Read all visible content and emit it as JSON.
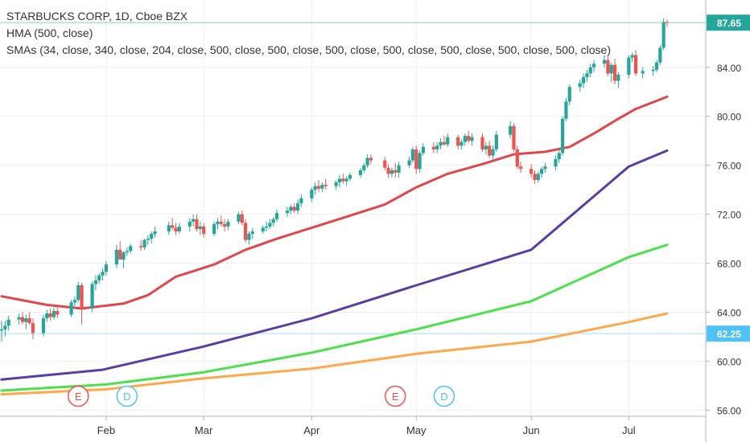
{
  "chart_data": {
    "type": "candlestick",
    "title": "STARBUCKS CORP, 1D, Cboe BZX",
    "indicators": [
      "HMA (500, close)",
      "SMAs (34, close, 340, close, 204, close, 500, close, 500, close, 500, close, 500, close, 500, close, 500, close, 500, close)"
    ],
    "x_ticks": [
      "Feb",
      "Mar",
      "Apr",
      "May",
      "Jun",
      "Jul"
    ],
    "y_ticks": [
      "56.00",
      "60.00",
      "64.00",
      "68.00",
      "72.00",
      "76.00",
      "80.00",
      "84.00"
    ],
    "ylim": [
      55.5,
      89.5
    ],
    "price_labels": [
      {
        "value": 87.65,
        "text": "87.65",
        "color": "#26a69a"
      },
      {
        "value": 62.25,
        "text": "62.25",
        "color": "#4fc3f7"
      }
    ],
    "events": [
      {
        "date": "2019-01-24",
        "label": "E",
        "color": "#ef5350"
      },
      {
        "date": "2019-02-07",
        "label": "D",
        "color": "#4fc3f7"
      },
      {
        "date": "2019-04-25",
        "label": "E",
        "color": "#ef5350"
      },
      {
        "date": "2019-05-09",
        "label": "D",
        "color": "#4fc3f7"
      }
    ],
    "up_color": "#26a69a",
    "down_color": "#ef5350",
    "candles": [
      [
        "2019-01-02",
        62.5,
        63.3,
        61.6,
        62.6
      ],
      [
        "2019-01-03",
        62.6,
        63.3,
        62.0,
        62.9
      ],
      [
        "2019-01-04",
        62.9,
        63.7,
        62.5,
        63.4
      ],
      [
        "2019-01-07",
        63.4,
        63.9,
        63.0,
        63.6
      ],
      [
        "2019-01-08",
        63.6,
        64.0,
        63.0,
        63.2
      ],
      [
        "2019-01-09",
        63.2,
        63.8,
        62.6,
        63.5
      ],
      [
        "2019-01-10",
        63.5,
        64.0,
        63.0,
        63.1
      ],
      [
        "2019-01-11",
        63.1,
        63.5,
        61.8,
        62.3
      ],
      [
        "2019-01-14",
        62.3,
        63.8,
        62.0,
        63.5
      ],
      [
        "2019-01-15",
        63.5,
        64.2,
        63.2,
        63.9
      ],
      [
        "2019-01-16",
        63.9,
        64.3,
        63.3,
        63.6
      ],
      [
        "2019-01-17",
        63.6,
        64.4,
        63.4,
        64.1
      ],
      [
        "2019-01-18",
        64.1,
        64.5,
        63.5,
        63.8
      ],
      [
        "2019-01-22",
        63.8,
        65.0,
        63.6,
        64.8
      ],
      [
        "2019-01-23",
        64.8,
        65.3,
        64.5,
        65.0
      ],
      [
        "2019-01-24",
        65.0,
        66.5,
        64.8,
        66.2
      ],
      [
        "2019-01-25",
        66.2,
        66.4,
        63.0,
        64.3
      ],
      [
        "2019-01-28",
        64.3,
        66.5,
        64.0,
        66.3
      ],
      [
        "2019-01-29",
        66.3,
        67.0,
        65.8,
        66.6
      ],
      [
        "2019-01-30",
        66.6,
        67.2,
        66.3,
        67.0
      ],
      [
        "2019-01-31",
        67.0,
        67.6,
        66.6,
        67.3
      ],
      [
        "2019-02-01",
        67.3,
        68.2,
        67.0,
        67.9
      ],
      [
        "2019-02-04",
        67.9,
        69.5,
        67.6,
        69.1
      ],
      [
        "2019-02-05",
        69.1,
        69.8,
        68.3,
        68.3
      ],
      [
        "2019-02-06",
        68.3,
        69.0,
        67.6,
        68.9
      ],
      [
        "2019-02-07",
        68.9,
        69.3,
        68.6,
        69.0
      ],
      [
        "2019-02-08",
        69.0,
        69.6,
        68.8,
        69.4
      ],
      [
        "2019-02-11",
        69.4,
        69.9,
        69.0,
        69.3
      ],
      [
        "2019-02-12",
        69.3,
        70.0,
        69.1,
        69.9
      ],
      [
        "2019-02-13",
        69.9,
        70.3,
        69.5,
        70.0
      ],
      [
        "2019-02-14",
        70.0,
        70.6,
        69.6,
        70.4
      ],
      [
        "2019-02-15",
        70.4,
        71.0,
        70.1,
        70.6
      ],
      [
        "2019-02-19",
        70.6,
        71.4,
        70.3,
        71.1
      ],
      [
        "2019-02-20",
        71.1,
        71.7,
        70.7,
        70.9
      ],
      [
        "2019-02-21",
        70.9,
        71.3,
        70.3,
        70.6
      ],
      [
        "2019-02-22",
        70.6,
        71.3,
        70.4,
        71.0
      ],
      [
        "2019-02-25",
        71.0,
        71.7,
        70.6,
        71.4
      ],
      [
        "2019-02-26",
        71.4,
        72.0,
        71.0,
        71.6
      ],
      [
        "2019-02-27",
        71.6,
        72.0,
        70.6,
        70.8
      ],
      [
        "2019-02-28",
        70.8,
        71.4,
        70.3,
        71.0
      ],
      [
        "2019-03-01",
        71.0,
        71.3,
        70.1,
        70.4
      ],
      [
        "2019-03-04",
        70.4,
        71.4,
        70.2,
        71.2
      ],
      [
        "2019-03-05",
        71.2,
        71.7,
        70.8,
        71.4
      ],
      [
        "2019-03-06",
        71.4,
        71.9,
        71.0,
        71.2
      ],
      [
        "2019-03-07",
        71.2,
        71.6,
        70.6,
        71.0
      ],
      [
        "2019-03-08",
        71.0,
        71.6,
        70.7,
        71.4
      ],
      [
        "2019-03-11",
        71.4,
        72.2,
        71.2,
        72.0
      ],
      [
        "2019-03-12",
        72.0,
        72.3,
        71.1,
        71.3
      ],
      [
        "2019-03-13",
        71.3,
        71.6,
        69.7,
        69.9
      ],
      [
        "2019-03-14",
        69.9,
        70.6,
        69.5,
        70.4
      ],
      [
        "2019-03-15",
        70.4,
        70.9,
        70.0,
        70.6
      ],
      [
        "2019-03-18",
        70.6,
        71.1,
        70.4,
        70.9
      ],
      [
        "2019-03-19",
        70.9,
        71.4,
        70.6,
        71.0
      ],
      [
        "2019-03-20",
        71.0,
        71.6,
        70.8,
        71.3
      ],
      [
        "2019-03-21",
        71.3,
        71.8,
        71.0,
        71.6
      ],
      [
        "2019-03-22",
        71.6,
        72.4,
        71.4,
        72.1
      ],
      [
        "2019-03-25",
        72.1,
        72.6,
        71.8,
        72.3
      ],
      [
        "2019-03-26",
        72.3,
        72.8,
        72.0,
        72.6
      ],
      [
        "2019-03-27",
        72.6,
        72.9,
        72.1,
        72.3
      ],
      [
        "2019-03-28",
        72.3,
        73.2,
        72.0,
        72.9
      ],
      [
        "2019-03-29",
        72.9,
        73.6,
        72.6,
        73.3
      ],
      [
        "2019-04-01",
        73.3,
        74.2,
        73.0,
        74.0
      ],
      [
        "2019-04-02",
        74.0,
        74.6,
        73.6,
        74.3
      ],
      [
        "2019-04-03",
        74.3,
        74.8,
        73.8,
        74.1
      ],
      [
        "2019-04-04",
        74.1,
        74.6,
        73.8,
        74.4
      ],
      [
        "2019-04-05",
        74.4,
        74.9,
        74.0,
        74.3
      ],
      [
        "2019-04-08",
        74.3,
        74.8,
        74.0,
        74.6
      ],
      [
        "2019-04-09",
        74.6,
        75.2,
        74.2,
        74.9
      ],
      [
        "2019-04-10",
        74.9,
        75.3,
        74.5,
        74.7
      ],
      [
        "2019-04-11",
        74.7,
        75.1,
        74.3,
        74.9
      ],
      [
        "2019-04-12",
        74.9,
        75.4,
        74.7,
        75.2
      ],
      [
        "2019-04-15",
        75.2,
        75.8,
        75.0,
        75.6
      ],
      [
        "2019-04-16",
        75.6,
        76.2,
        75.4,
        76.0
      ],
      [
        "2019-04-17",
        76.0,
        76.9,
        75.8,
        76.6
      ],
      [
        "2019-04-18",
        76.6,
        76.9,
        76.1,
        76.4
      ],
      [
        "2019-04-22",
        76.4,
        76.7,
        75.6,
        75.8
      ],
      [
        "2019-04-23",
        75.8,
        76.1,
        75.0,
        75.3
      ],
      [
        "2019-04-24",
        75.3,
        75.8,
        75.0,
        75.6
      ],
      [
        "2019-04-25",
        75.6,
        76.2,
        75.0,
        75.4
      ],
      [
        "2019-04-26",
        75.4,
        76.3,
        75.0,
        76.0
      ],
      [
        "2019-04-29",
        76.0,
        76.7,
        75.8,
        76.4
      ],
      [
        "2019-04-30",
        76.4,
        77.5,
        76.2,
        77.3
      ],
      [
        "2019-05-01",
        77.3,
        77.6,
        75.3,
        75.7
      ],
      [
        "2019-05-02",
        75.7,
        77.2,
        75.4,
        77.0
      ],
      [
        "2019-05-03",
        77.0,
        77.8,
        76.8,
        77.5
      ],
      [
        "2019-05-06",
        77.5,
        77.9,
        77.0,
        77.3
      ],
      [
        "2019-05-07",
        77.3,
        77.9,
        77.0,
        77.6
      ],
      [
        "2019-05-08",
        77.6,
        78.2,
        77.3,
        77.9
      ],
      [
        "2019-05-09",
        77.9,
        78.4,
        77.6,
        77.7
      ],
      [
        "2019-05-10",
        77.7,
        78.6,
        77.5,
        78.3
      ],
      [
        "2019-05-13",
        78.3,
        78.5,
        77.3,
        77.6
      ],
      [
        "2019-05-14",
        77.6,
        78.1,
        77.3,
        77.9
      ],
      [
        "2019-05-15",
        77.9,
        78.6,
        77.6,
        78.4
      ],
      [
        "2019-05-16",
        78.4,
        78.8,
        77.8,
        78.0
      ],
      [
        "2019-05-17",
        78.0,
        78.6,
        77.6,
        78.3
      ],
      [
        "2019-05-20",
        78.3,
        78.6,
        77.1,
        77.3
      ],
      [
        "2019-05-21",
        77.3,
        77.9,
        76.9,
        77.6
      ],
      [
        "2019-05-22",
        77.6,
        78.0,
        76.6,
        76.8
      ],
      [
        "2019-05-23",
        76.8,
        77.6,
        76.5,
        77.3
      ],
      [
        "2019-05-24",
        77.3,
        78.8,
        77.1,
        78.5
      ],
      [
        "2019-05-28",
        78.5,
        79.6,
        78.2,
        79.2
      ],
      [
        "2019-05-29",
        79.2,
        79.4,
        77.1,
        77.3
      ],
      [
        "2019-05-30",
        77.3,
        77.6,
        75.7,
        75.9
      ],
      [
        "2019-05-31",
        75.9,
        76.3,
        75.4,
        75.7
      ],
      [
        "2019-06-03",
        75.7,
        76.1,
        75.0,
        75.3
      ],
      [
        "2019-06-04",
        75.3,
        75.6,
        74.5,
        74.8
      ],
      [
        "2019-06-05",
        74.8,
        75.5,
        74.6,
        75.3
      ],
      [
        "2019-06-06",
        75.3,
        75.9,
        75.0,
        75.7
      ],
      [
        "2019-06-07",
        75.7,
        76.2,
        75.4,
        75.9
      ],
      [
        "2019-06-10",
        75.9,
        76.8,
        75.6,
        76.5
      ],
      [
        "2019-06-11",
        76.5,
        77.3,
        76.2,
        77.0
      ],
      [
        "2019-06-12",
        77.0,
        80.0,
        76.8,
        79.8
      ],
      [
        "2019-06-13",
        79.8,
        81.5,
        79.6,
        81.2
      ],
      [
        "2019-06-14",
        81.2,
        82.6,
        80.9,
        82.4
      ],
      [
        "2019-06-17",
        82.4,
        83.0,
        82.0,
        82.7
      ],
      [
        "2019-06-18",
        82.7,
        83.5,
        82.3,
        83.2
      ],
      [
        "2019-06-19",
        83.2,
        83.8,
        82.8,
        83.5
      ],
      [
        "2019-06-20",
        83.5,
        84.3,
        83.2,
        84.0
      ],
      [
        "2019-06-21",
        84.0,
        84.6,
        83.6,
        84.3
      ],
      [
        "2019-06-24",
        84.3,
        85.0,
        84.0,
        84.6
      ],
      [
        "2019-06-25",
        84.6,
        84.9,
        83.3,
        83.5
      ],
      [
        "2019-06-26",
        83.5,
        84.4,
        82.8,
        84.2
      ],
      [
        "2019-06-27",
        84.2,
        84.7,
        82.6,
        82.9
      ],
      [
        "2019-06-28",
        82.9,
        83.6,
        82.3,
        83.4
      ],
      [
        "2019-07-01",
        83.4,
        85.0,
        83.1,
        84.8
      ],
      [
        "2019-07-02",
        84.8,
        85.2,
        84.4,
        85.0
      ],
      [
        "2019-07-03",
        85.0,
        85.4,
        83.3,
        83.5
      ],
      [
        "2019-07-05",
        83.5,
        84.0,
        83.1,
        83.7
      ],
      [
        "2019-07-08",
        83.7,
        84.1,
        83.3,
        83.8
      ],
      [
        "2019-07-09",
        83.8,
        84.6,
        83.6,
        84.4
      ],
      [
        "2019-07-10",
        84.4,
        85.8,
        84.2,
        85.6
      ],
      [
        "2019-07-11",
        85.6,
        88.0,
        85.4,
        87.7
      ],
      [
        "2019-07-12",
        87.7,
        87.9,
        87.3,
        87.65
      ]
    ],
    "series": [
      {
        "color": "#e0464a",
        "width": 3,
        "points": [
          [
            "2019-01-02",
            65.3
          ],
          [
            "2019-01-15",
            64.6
          ],
          [
            "2019-01-25",
            64.3
          ],
          [
            "2019-02-06",
            64.7
          ],
          [
            "2019-02-13",
            65.4
          ],
          [
            "2019-02-21",
            66.9
          ],
          [
            "2019-03-04",
            67.9
          ],
          [
            "2019-03-13",
            69.1
          ],
          [
            "2019-03-22",
            70.0
          ],
          [
            "2019-04-01",
            70.9
          ],
          [
            "2019-04-11",
            71.8
          ],
          [
            "2019-04-22",
            72.8
          ],
          [
            "2019-05-01",
            74.2
          ],
          [
            "2019-05-10",
            75.3
          ],
          [
            "2019-05-20",
            76.1
          ],
          [
            "2019-05-29",
            76.9
          ],
          [
            "2019-06-07",
            77.1
          ],
          [
            "2019-06-14",
            77.5
          ],
          [
            "2019-06-21",
            78.6
          ],
          [
            "2019-06-28",
            79.8
          ],
          [
            "2019-07-03",
            80.6
          ],
          [
            "2019-07-12",
            81.6
          ]
        ]
      },
      {
        "color": "#5b3ea3",
        "width": 3,
        "points": [
          [
            "2019-01-02",
            58.5
          ],
          [
            "2019-01-31",
            59.3
          ],
          [
            "2019-03-01",
            61.2
          ],
          [
            "2019-04-01",
            63.5
          ],
          [
            "2019-05-01",
            66.2
          ],
          [
            "2019-06-03",
            69.1
          ],
          [
            "2019-07-01",
            75.9
          ],
          [
            "2019-07-12",
            77.2
          ]
        ]
      },
      {
        "color": "#4ae14a",
        "width": 3,
        "points": [
          [
            "2019-01-02",
            57.6
          ],
          [
            "2019-02-01",
            58.1
          ],
          [
            "2019-03-01",
            59.1
          ],
          [
            "2019-04-01",
            60.7
          ],
          [
            "2019-05-01",
            62.6
          ],
          [
            "2019-06-03",
            64.9
          ],
          [
            "2019-07-01",
            68.5
          ],
          [
            "2019-07-12",
            69.5
          ]
        ]
      },
      {
        "color": "#ffa84a",
        "width": 3,
        "points": [
          [
            "2019-01-02",
            57.3
          ],
          [
            "2019-02-01",
            57.7
          ],
          [
            "2019-03-01",
            58.6
          ],
          [
            "2019-04-01",
            59.4
          ],
          [
            "2019-05-01",
            60.6
          ],
          [
            "2019-06-03",
            61.6
          ],
          [
            "2019-07-01",
            63.2
          ],
          [
            "2019-07-12",
            63.9
          ]
        ]
      }
    ]
  }
}
